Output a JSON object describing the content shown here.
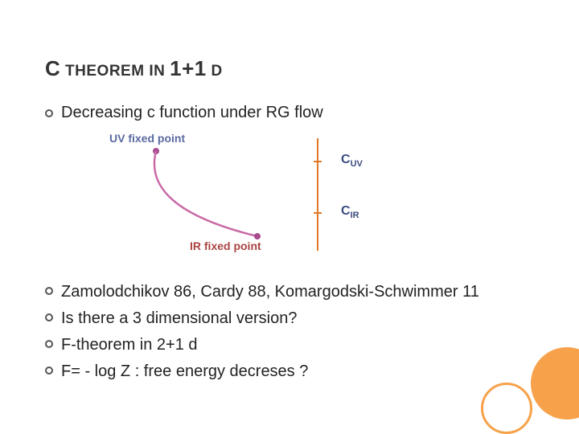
{
  "accent": {
    "fill": "#f7a14a",
    "ring": "#f7a14a"
  },
  "title": {
    "part1_big": "C",
    "part1_small": " THEOREM IN ",
    "part2_big": "1+1",
    "part2_small": " D"
  },
  "top_bullet": "Decreasing  c function under RG flow",
  "diagram": {
    "uv_label": "UV fixed point",
    "ir_label": "IR fixed point",
    "c_uv": "C",
    "c_uv_sub": "UV",
    "c_ir": "C",
    "c_ir_sub": "IR",
    "curve_color": "#c96aa6",
    "curve_width": 2.5,
    "dot_color": "#a94c8f",
    "axis_color": "#e07828",
    "uv_label_color": "#5a6aa0",
    "ir_label_color": "#a94442",
    "c_label_color": "#3b4b7f",
    "tick_uv_y": 40,
    "tick_ir_y": 104
  },
  "lower_bullets": [
    "Zamolodchikov 86, Cardy 88, Komargodski-Schwimmer 11",
    "Is there a 3 dimensional version?",
    "F-theorem in 2+1 d",
    "F= - log Z  :  free energy decreses ?"
  ]
}
